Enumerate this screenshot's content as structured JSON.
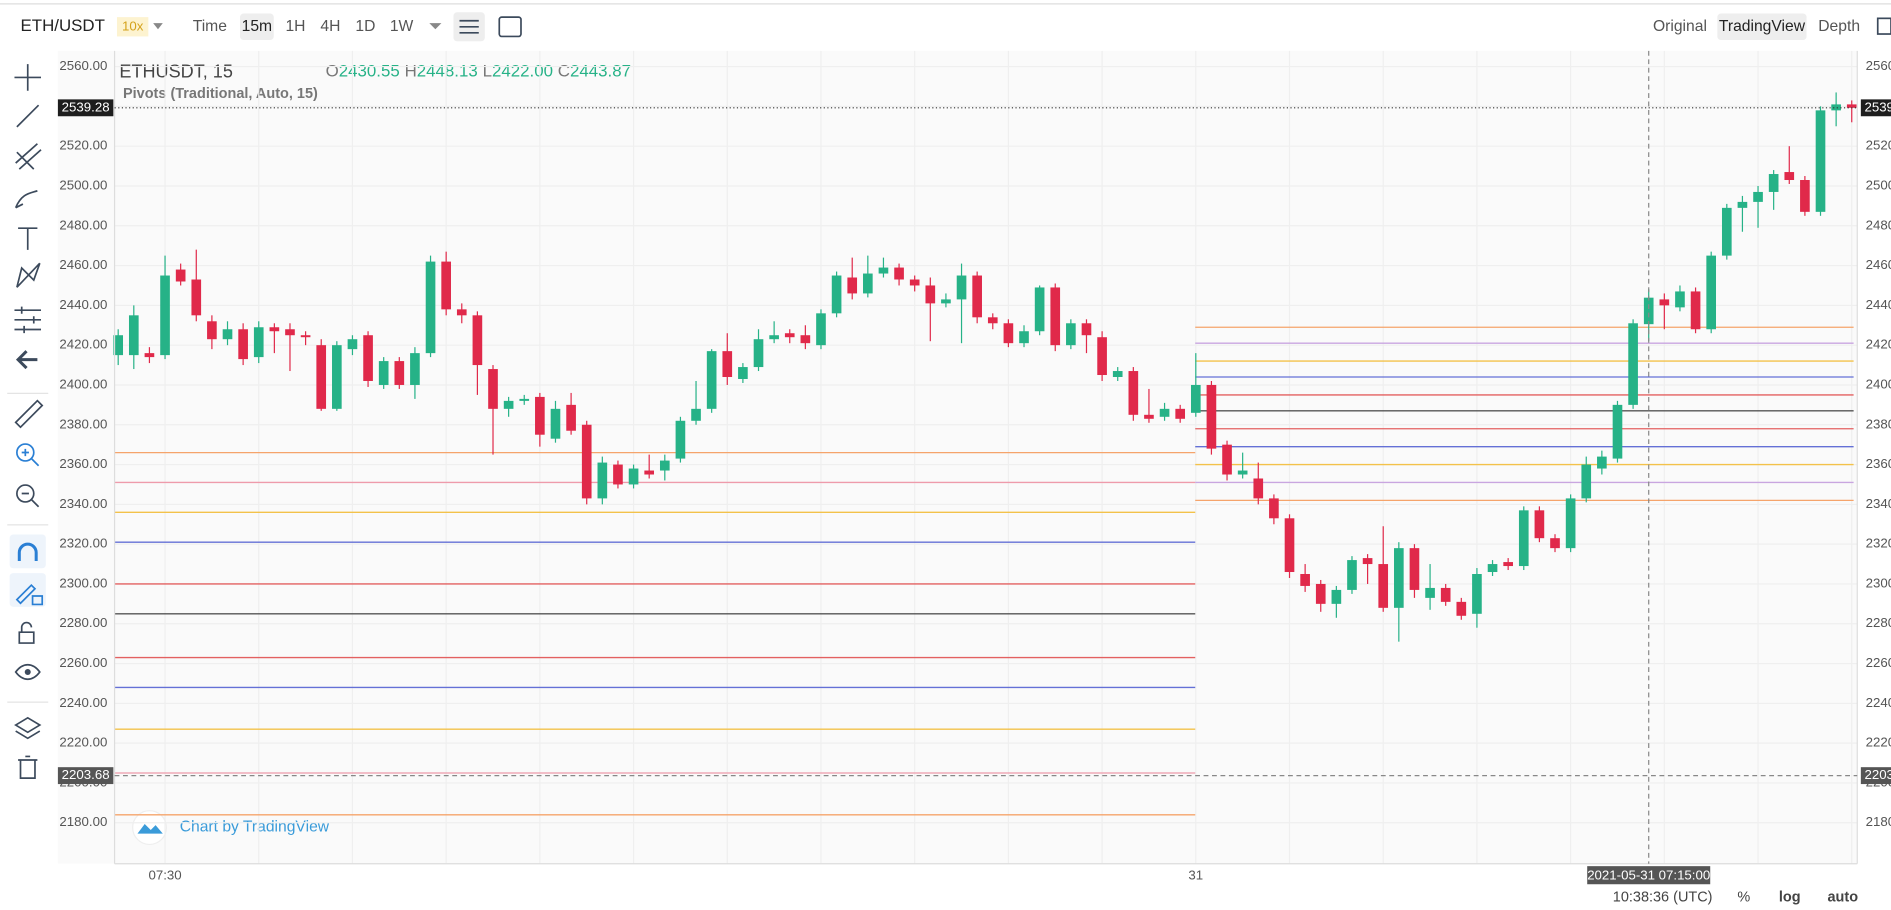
{
  "header": {
    "pair": "ETH/USDT",
    "leverage": "10x",
    "intervals": [
      "Time",
      "15m",
      "1H",
      "4H",
      "1D",
      "1W"
    ],
    "views": [
      "Original",
      "TradingView",
      "Depth"
    ]
  },
  "legend": {
    "symbol": "ETHUSDT, 15",
    "o_label": "O",
    "o": "2430.55",
    "h_label": "H",
    "h": "2448.13",
    "l_label": "L",
    "l": "2422.00",
    "c_label": "C",
    "c": "2443.87",
    "study": "Pivots (Traditional, Auto, 15)"
  },
  "footer": {
    "credit": "Chart by TradingView",
    "clock": "10:38:36 (UTC)",
    "percent": "%",
    "log": "log",
    "auto": "auto"
  },
  "chart_data": {
    "type": "candlestick",
    "up_color": "#26b287",
    "down_color": "#e0294a",
    "categories": [
      null,
      null,
      null,
      "07:30",
      null,
      null,
      null,
      null,
      null,
      null,
      null,
      null,
      null,
      null,
      null,
      null,
      null,
      null,
      null,
      null,
      null,
      null,
      null,
      null,
      null,
      null,
      null,
      null,
      null,
      null,
      null,
      null,
      null,
      null,
      null,
      null,
      null,
      null,
      null,
      null,
      null,
      null,
      null,
      null,
      null,
      null,
      null,
      null,
      null,
      null,
      null,
      null,
      null,
      null,
      null,
      null,
      null,
      null,
      null,
      null,
      null,
      null,
      null,
      null,
      null,
      null,
      null,
      null,
      null,
      "31",
      null,
      null,
      null,
      null,
      null,
      null,
      null,
      null,
      null,
      null,
      null,
      null,
      null,
      null,
      null,
      null,
      null,
      null,
      null,
      null,
      null,
      null,
      null,
      null,
      null,
      null,
      null,
      null,
      null,
      null,
      null,
      null,
      null,
      null,
      null,
      null,
      null,
      null,
      null,
      null,
      null,
      null
    ],
    "open": [
      2415,
      2415,
      2416,
      2415,
      2458,
      2453,
      2432,
      2423,
      2428,
      2414,
      2429,
      2428,
      2425,
      2420,
      2388,
      2418,
      2425,
      2400,
      2412,
      2400,
      2416,
      2462,
      2438,
      2435,
      2408,
      2388,
      2392,
      2394,
      2373,
      2390,
      2380,
      2343,
      2360,
      2350,
      2357,
      2357,
      2363,
      2382,
      2388,
      2417,
      2403,
      2409,
      2423,
      2426,
      2425,
      2420,
      2436,
      2454,
      2446,
      2456,
      2459,
      2453,
      2450,
      2441,
      2443,
      2455,
      2434,
      2431,
      2421,
      2427,
      2449,
      2420,
      2431,
      2424,
      2404,
      2407,
      2385,
      2384,
      2388,
      2386,
      2400,
      2370,
      2355,
      2353,
      2343,
      2333,
      2305,
      2300,
      2290,
      2297,
      2313,
      2310,
      2288,
      2318,
      2293,
      2298,
      2291,
      2285,
      2306,
      2311,
      2309,
      2337,
      2323,
      2318,
      2343,
      2358,
      2363,
      2390,
      2430.55,
      2443,
      2439,
      2447,
      2428,
      2465,
      2489,
      2492,
      2497,
      2507,
      2503,
      2487,
      2538,
      2541
    ],
    "high": [
      2428,
      2440,
      2419,
      2465,
      2461,
      2468,
      2435,
      2432,
      2431,
      2432,
      2431,
      2431,
      2427,
      2423,
      2422,
      2425,
      2427,
      2414,
      2414,
      2419,
      2465,
      2467,
      2441,
      2437,
      2410,
      2394,
      2395,
      2396,
      2392,
      2396,
      2382,
      2364,
      2362,
      2360,
      2365,
      2365,
      2384,
      2402,
      2418,
      2426,
      2411,
      2428,
      2432,
      2428,
      2430,
      2438,
      2457,
      2464,
      2465,
      2464,
      2461,
      2455,
      2454,
      2446,
      2461,
      2457,
      2436,
      2433,
      2430,
      2450,
      2451,
      2433,
      2433,
      2427,
      2409,
      2409,
      2398,
      2391,
      2390,
      2416,
      2402,
      2372,
      2366,
      2361,
      2345,
      2335,
      2310,
      2302,
      2299,
      2314,
      2315,
      2329,
      2321,
      2320,
      2310,
      2300,
      2293,
      2308,
      2312,
      2313,
      2339,
      2339,
      2325,
      2345,
      2364,
      2367,
      2392,
      2433,
      2448.13,
      2446,
      2450,
      2449,
      2467,
      2491,
      2495,
      2500,
      2508,
      2520,
      2505,
      2540,
      2547,
      2543
    ],
    "low": [
      2410,
      2408,
      2411,
      2413,
      2450,
      2432,
      2418,
      2420,
      2410,
      2411,
      2416,
      2407,
      2420,
      2387,
      2387,
      2415,
      2399,
      2398,
      2398,
      2393,
      2414,
      2435,
      2431,
      2395,
      2365,
      2384,
      2390,
      2369,
      2371,
      2375,
      2340,
      2340,
      2348,
      2348,
      2353,
      2352,
      2361,
      2380,
      2386,
      2400,
      2401,
      2407,
      2421,
      2421,
      2418,
      2418,
      2434,
      2443,
      2444,
      2454,
      2450,
      2447,
      2422,
      2439,
      2421,
      2431,
      2428,
      2419,
      2419,
      2425,
      2417,
      2418,
      2416,
      2402,
      2402,
      2382,
      2381,
      2382,
      2381,
      2384,
      2365,
      2352,
      2353,
      2340,
      2330,
      2303,
      2296,
      2286,
      2283,
      2295,
      2300,
      2286,
      2271,
      2293,
      2287,
      2289,
      2282,
      2278,
      2304,
      2307,
      2307,
      2321,
      2316,
      2316,
      2341,
      2355,
      2361,
      2388,
      2422,
      2428,
      2437,
      2426,
      2426,
      2463,
      2477,
      2479,
      2488,
      2501,
      2485,
      2485,
      2530,
      2532
    ],
    "close": [
      2425,
      2435,
      2414,
      2455,
      2452,
      2435,
      2423,
      2428,
      2413,
      2429,
      2427,
      2425,
      2424,
      2388,
      2420,
      2423,
      2402,
      2412,
      2400,
      2416,
      2462,
      2438,
      2435,
      2410,
      2388,
      2392,
      2393,
      2375,
      2388,
      2377,
      2343,
      2361,
      2350,
      2358,
      2355,
      2362,
      2382,
      2388,
      2417,
      2404,
      2409,
      2423,
      2425,
      2424,
      2421,
      2436,
      2455,
      2446,
      2456,
      2459,
      2453,
      2450,
      2441,
      2443,
      2455,
      2434,
      2431,
      2421,
      2427,
      2449,
      2420,
      2431,
      2425,
      2405,
      2407,
      2385,
      2383,
      2388,
      2383,
      2400,
      2368,
      2355,
      2357,
      2343,
      2333,
      2306,
      2299,
      2290,
      2297,
      2312,
      2310,
      2288,
      2318,
      2297,
      2298,
      2291,
      2284,
      2305,
      2310,
      2309,
      2337,
      2323,
      2318,
      2343,
      2360,
      2364,
      2390,
      2431,
      2443.87,
      2440,
      2447,
      2428,
      2465,
      2489,
      2492,
      2497,
      2506,
      2503,
      2487,
      2538,
      2541,
      2539.28
    ],
    "pivot_colors": [
      "#f5a46b",
      "#ee9bab",
      "#f3c24a",
      "#6470d6",
      "#e36060",
      "#555555",
      "#e36060",
      "#6470d6",
      "#f3c24a",
      "#ee9bab",
      "#f5a46b"
    ],
    "pivots": [
      {
        "levels": [
          2366,
          2351,
          2336,
          2321,
          2300,
          2285,
          2263,
          2248,
          2227,
          2205,
          2184
        ]
      },
      {
        "levels": [
          2429,
          2421,
          2412,
          2404,
          2395,
          2387,
          2378,
          2369,
          2360,
          2351,
          2342
        ]
      }
    ],
    "pivot_colors_right": [
      "#f5a46b",
      "#c9a6e0",
      "#f3c24a",
      "#6470d6",
      "#e36060",
      "#555555",
      "#e36060",
      "#6470d6",
      "#f3c24a",
      "#c9a6e0",
      "#f5a46b"
    ],
    "ylim": [
      2170,
      2566
    ],
    "yticks": [
      {
        "value": 2180,
        "label": "2180.00"
      },
      {
        "value": 2200,
        "label": "2200.00"
      },
      {
        "value": 2220,
        "label": "2220.00"
      },
      {
        "value": 2240,
        "label": "2240.00"
      },
      {
        "value": 2260,
        "label": "2260.00"
      },
      {
        "value": 2280,
        "label": "2280.00"
      },
      {
        "value": 2300,
        "label": "2300.00"
      },
      {
        "value": 2320,
        "label": "2320.00"
      },
      {
        "value": 2340,
        "label": "2340.00"
      },
      {
        "value": 2360,
        "label": "2360.00"
      },
      {
        "value": 2380,
        "label": "2380.00"
      },
      {
        "value": 2400,
        "label": "2400.00"
      },
      {
        "value": 2420,
        "label": "2420.00"
      },
      {
        "value": 2440,
        "label": "2440.00"
      },
      {
        "value": 2460,
        "label": "2460.00"
      },
      {
        "value": 2480,
        "label": "2480.00"
      },
      {
        "value": 2500,
        "label": "2500.00"
      },
      {
        "value": 2520,
        "label": "2520.00"
      },
      {
        "value": 2540,
        "label": "2540.00"
      },
      {
        "value": 2560,
        "label": "2560.00"
      }
    ],
    "grid": true,
    "last_price": 2539.28,
    "crosshair_price": 2203.68,
    "crosshair_time": "2021-05-31 07:15:00",
    "crosshair_index": 98
  }
}
